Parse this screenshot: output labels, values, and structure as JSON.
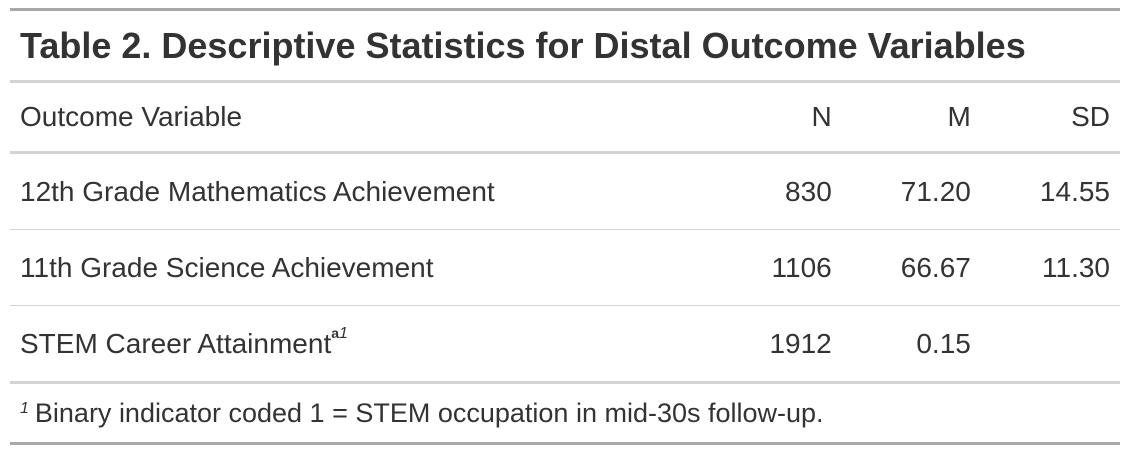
{
  "table": {
    "title": "Table 2. Descriptive Statistics for Distal Outcome Variables",
    "columns": [
      "Outcome Variable",
      "N",
      "M",
      "SD"
    ],
    "rows": [
      {
        "variable": "12th Grade Mathematics Achievement",
        "n": "830",
        "m": "71.20",
        "sd": "14.55",
        "marker_a": "",
        "marker_1": ""
      },
      {
        "variable": "11th Grade Science Achievement",
        "n": "1106",
        "m": "66.67",
        "sd": "11.30",
        "marker_a": "",
        "marker_1": ""
      },
      {
        "variable": "STEM Career Attainment",
        "n": "1912",
        "m": "0.15",
        "sd": "",
        "marker_a": "a",
        "marker_1": "1"
      }
    ],
    "footnote": {
      "marker": "1",
      "text": "Binary indicator coded 1 = STEM occupation in mid-30s follow-up."
    }
  },
  "colors": {
    "text": "#333333",
    "heavy_rule": "#a8a8a8",
    "light_rule": "#d3d3d3"
  }
}
